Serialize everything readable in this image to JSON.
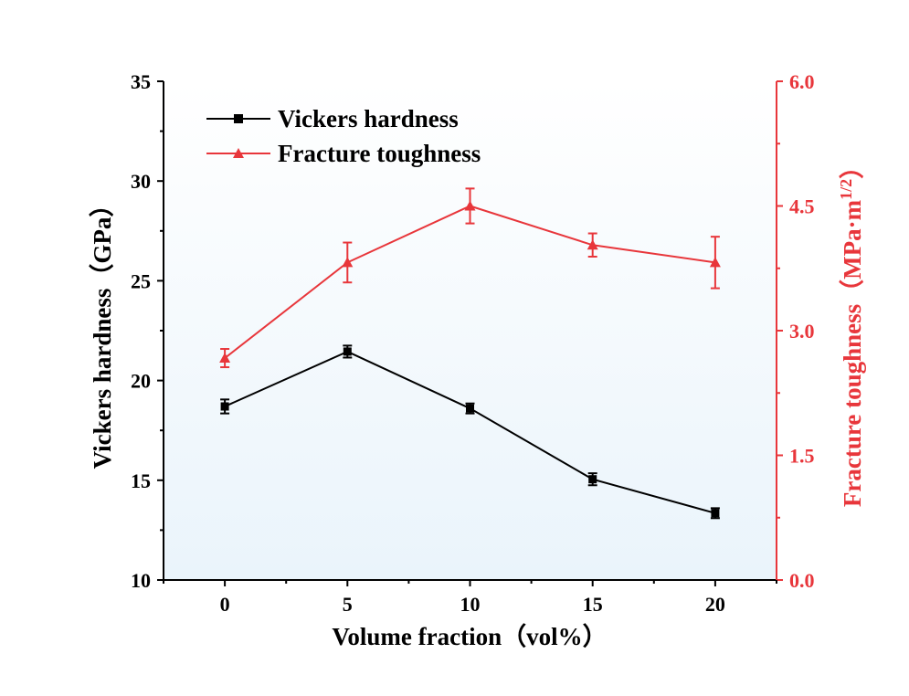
{
  "chart_data": {
    "type": "line",
    "xlabel": "Volume fraction（vol%）",
    "ylabel": "Vickers hardness（GPa）",
    "y2label": "Fracture toughness（MPa·m",
    "y2label_sup": "1/2",
    "y2label_tail": "）",
    "x": [
      0,
      5,
      10,
      15,
      20
    ],
    "x_ticks": [
      "0",
      "5",
      "10",
      "15",
      "20"
    ],
    "xlim": [
      -2.5,
      22.5
    ],
    "ylim": [
      10,
      35
    ],
    "y_ticks": [
      "10",
      "15",
      "20",
      "25",
      "30",
      "35"
    ],
    "y2lim": [
      0,
      6
    ],
    "y2_ticks": [
      "0.0",
      "1.5",
      "3.0",
      "4.5",
      "6.0"
    ],
    "background": "gradient: #ffffff top to #eef6fc bottom",
    "legend_position": "upper-left",
    "series": [
      {
        "name": "Vickers hardness",
        "axis": "left",
        "color": "#000000",
        "marker": "square",
        "values": [
          18.7,
          21.45,
          18.6,
          15.05,
          13.35
        ],
        "errors": [
          0.35,
          0.3,
          0.25,
          0.3,
          0.25
        ]
      },
      {
        "name": "Fracture toughness",
        "axis": "right",
        "color": "#e8363b",
        "marker": "triangle",
        "values": [
          2.67,
          3.82,
          4.5,
          4.03,
          3.82
        ],
        "errors": [
          0.11,
          0.24,
          0.21,
          0.14,
          0.31
        ]
      }
    ]
  }
}
